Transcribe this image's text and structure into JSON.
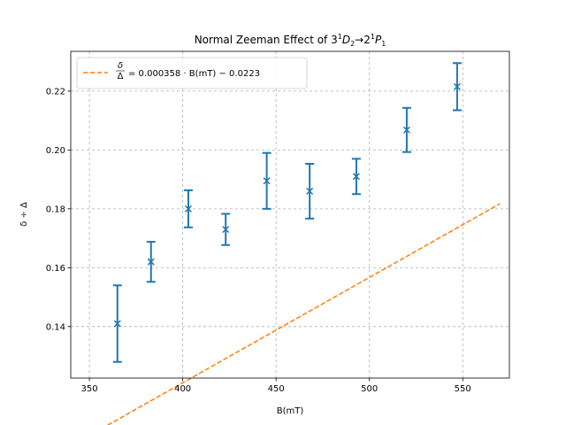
{
  "chart_data": {
    "type": "scatter",
    "title_prefix": "Normal Zeeman Effect of 3",
    "title_sup1": "1",
    "title_d": "D",
    "title_sub1": "2",
    "title_arrow": "→2",
    "title_sup2": "1",
    "title_p": "P",
    "title_sub2": "1",
    "xlabel": "B(mT)",
    "ylabel": "δ ÷ Δ",
    "xlim": [
      340,
      575
    ],
    "ylim": [
      0.1225,
      0.2335
    ],
    "xticks": [
      350,
      400,
      450,
      500,
      550
    ],
    "yticks": [
      0.14,
      0.16,
      0.18,
      0.2,
      0.22
    ],
    "xtick_labels": [
      "350",
      "400",
      "450",
      "500",
      "550"
    ],
    "ytick_labels": [
      "0.14",
      "0.16",
      "0.18",
      "0.20",
      "0.22"
    ],
    "grid": true,
    "legend_position": "top-left",
    "series": [
      {
        "type": "scatter-errorbar",
        "color": "#1f77b4",
        "marker": "x",
        "points": [
          {
            "x": 365,
            "y": 0.141,
            "err": 0.013
          },
          {
            "x": 383,
            "y": 0.162,
            "err": 0.0068
          },
          {
            "x": 403,
            "y": 0.18,
            "err": 0.0063
          },
          {
            "x": 423,
            "y": 0.173,
            "err": 0.0053
          },
          {
            "x": 445,
            "y": 0.1895,
            "err": 0.0095
          },
          {
            "x": 468,
            "y": 0.186,
            "err": 0.0093
          },
          {
            "x": 493,
            "y": 0.191,
            "err": 0.006
          },
          {
            "x": 520,
            "y": 0.2068,
            "err": 0.0075
          },
          {
            "x": 547,
            "y": 0.2215,
            "err": 0.008
          }
        ]
      },
      {
        "type": "fit-line",
        "color": "#ff7f0e",
        "slope": 0.000358,
        "intercept": -0.0223,
        "x_range": [
          350,
          570
        ],
        "legend": {
          "frac_num": "δ",
          "frac_den": "Δ",
          "equation": "= 0.000358 · B(mT) − 0.0223"
        }
      }
    ]
  }
}
